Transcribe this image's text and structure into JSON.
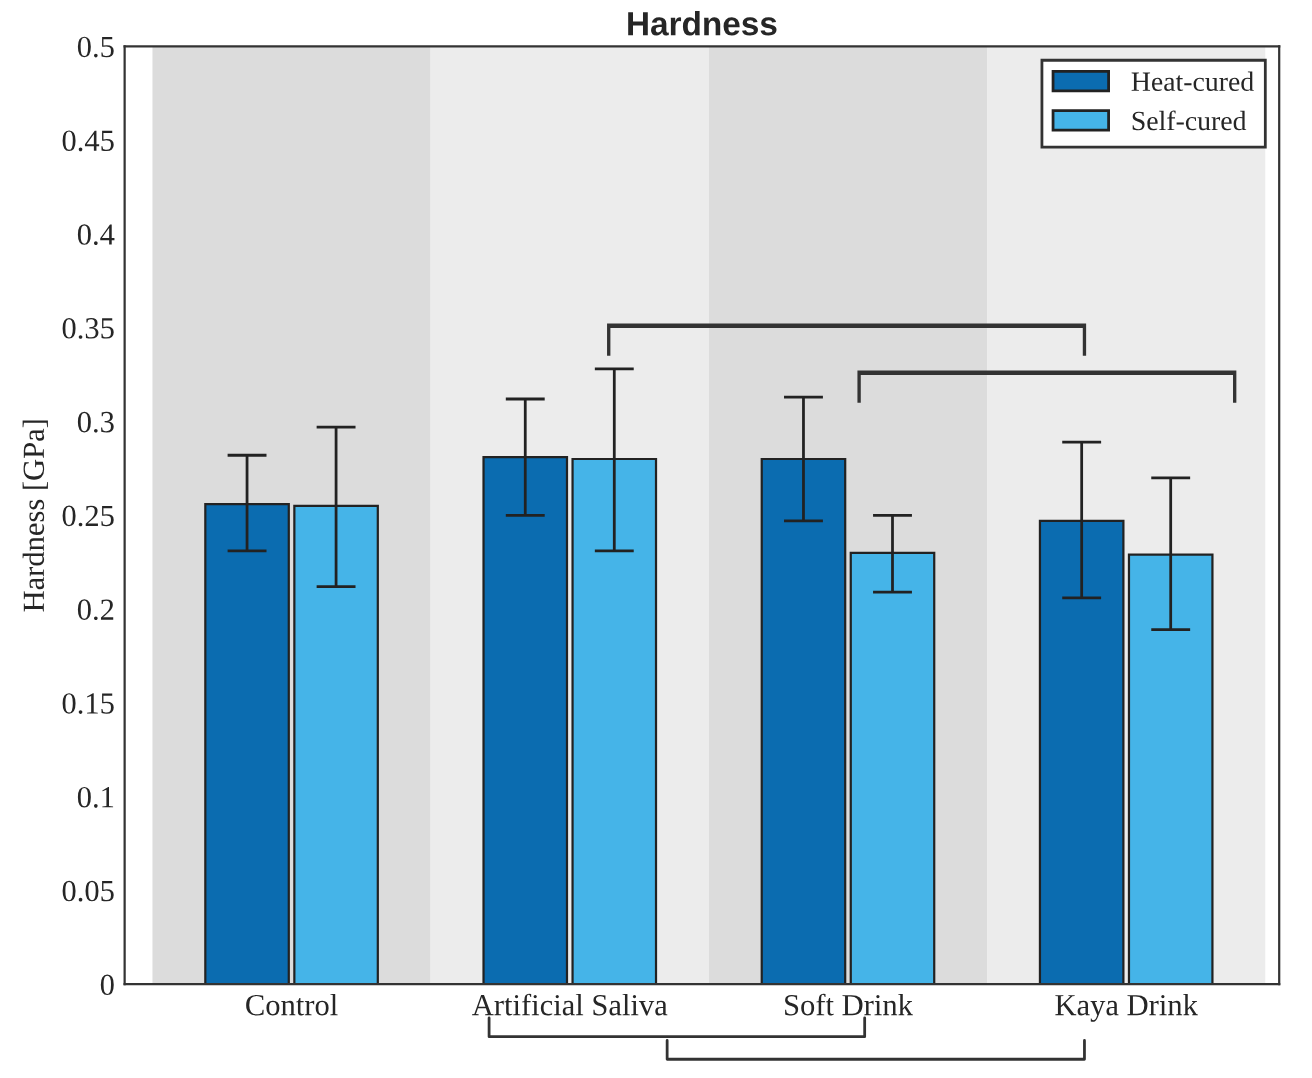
{
  "chart_data": {
    "type": "bar",
    "title": "Hardness",
    "ylabel": "Hardness [GPa]",
    "categories": [
      "Control",
      "Artificial Saliva",
      "Soft Drink",
      "Kaya Drink"
    ],
    "series": [
      {
        "name": "Heat-cured",
        "color": "#0b6cb0",
        "values": [
          0.256,
          0.281,
          0.28,
          0.247
        ],
        "errors": [
          [
            0.231,
            0.282
          ],
          [
            0.25,
            0.312
          ],
          [
            0.247,
            0.313
          ],
          [
            0.206,
            0.289
          ]
        ]
      },
      {
        "name": "Self-cured",
        "color": "#45b4e8",
        "values": [
          0.255,
          0.28,
          0.23,
          0.229
        ],
        "errors": [
          [
            0.212,
            0.297
          ],
          [
            0.231,
            0.328
          ],
          [
            0.209,
            0.25
          ],
          [
            0.189,
            0.27
          ]
        ]
      }
    ],
    "ylim": [
      0,
      0.5
    ],
    "yticks": [
      0,
      0.05,
      0.1,
      0.15,
      0.2,
      0.25,
      0.3,
      0.35,
      0.4,
      0.45,
      0.5
    ],
    "legend": "top right",
    "grid": false
  }
}
